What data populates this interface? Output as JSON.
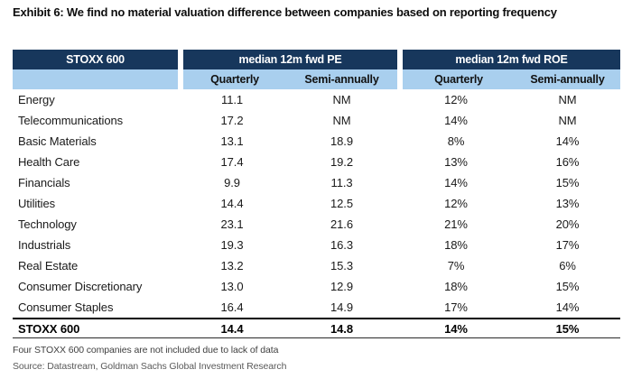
{
  "exhibit_title": "Exhibit 6: We find no material valuation difference between companies based on reporting frequency",
  "chart_data": {
    "type": "table",
    "title": "Exhibit 6: We find no material valuation difference between companies based on reporting frequency",
    "corner_header": "STOXX 600",
    "column_groups": [
      {
        "label": "median 12m fwd PE",
        "subcolumns": [
          "Quarterly",
          "Semi-annually"
        ]
      },
      {
        "label": "median 12m fwd ROE",
        "subcolumns": [
          "Quarterly",
          "Semi-annually"
        ]
      }
    ],
    "rows": [
      {
        "sector": "Energy",
        "pe_q": "11.1",
        "pe_s": "NM",
        "roe_q": "12%",
        "roe_s": "NM"
      },
      {
        "sector": "Telecommunications",
        "pe_q": "17.2",
        "pe_s": "NM",
        "roe_q": "14%",
        "roe_s": "NM"
      },
      {
        "sector": "Basic Materials",
        "pe_q": "13.1",
        "pe_s": "18.9",
        "roe_q": "8%",
        "roe_s": "14%"
      },
      {
        "sector": "Health Care",
        "pe_q": "17.4",
        "pe_s": "19.2",
        "roe_q": "13%",
        "roe_s": "16%"
      },
      {
        "sector": "Financials",
        "pe_q": "9.9",
        "pe_s": "11.3",
        "roe_q": "14%",
        "roe_s": "15%"
      },
      {
        "sector": "Utilities",
        "pe_q": "14.4",
        "pe_s": "12.5",
        "roe_q": "12%",
        "roe_s": "13%"
      },
      {
        "sector": "Technology",
        "pe_q": "23.1",
        "pe_s": "21.6",
        "roe_q": "21%",
        "roe_s": "20%"
      },
      {
        "sector": "Industrials",
        "pe_q": "19.3",
        "pe_s": "16.3",
        "roe_q": "18%",
        "roe_s": "17%"
      },
      {
        "sector": "Real Estate",
        "pe_q": "13.2",
        "pe_s": "15.3",
        "roe_q": "7%",
        "roe_s": "6%"
      },
      {
        "sector": "Consumer Discretionary",
        "pe_q": "13.0",
        "pe_s": "12.9",
        "roe_q": "18%",
        "roe_s": "15%"
      },
      {
        "sector": "Consumer Staples",
        "pe_q": "16.4",
        "pe_s": "14.9",
        "roe_q": "17%",
        "roe_s": "14%"
      }
    ],
    "total_row": {
      "sector": "STOXX 600",
      "pe_q": "14.4",
      "pe_s": "14.8",
      "roe_q": "14%",
      "roe_s": "15%"
    },
    "footnote": "Four STOXX 600 companies are not included due to lack of data",
    "source": "Source: Datastream, Goldman Sachs Global Investment Research"
  },
  "colors": {
    "header_bg": "#17375c",
    "subheader_bg": "#a9cfee",
    "header_text": "#ffffff",
    "body_text": "#1a1a1a"
  }
}
